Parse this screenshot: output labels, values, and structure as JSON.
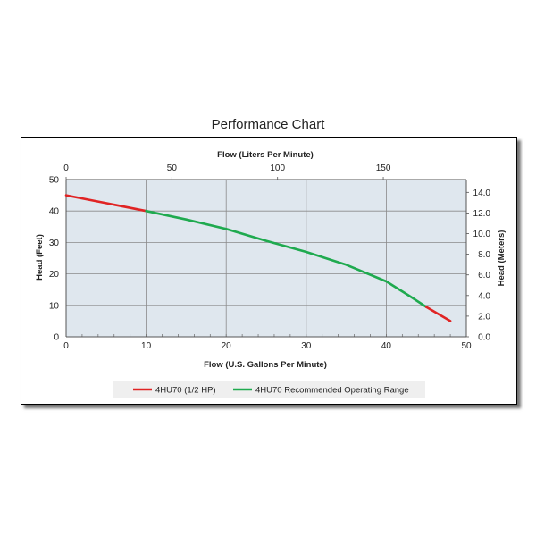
{
  "chart_data": {
    "type": "line",
    "title": "Performance Chart",
    "xlabel": "Flow (U.S. Gallons Per Minute)",
    "x2label": "Flow (Liters Per Minute)",
    "ylabel": "Head (Feet)",
    "y2label": "Head (Meters)",
    "xlim": [
      0,
      50
    ],
    "ylim": [
      0,
      50
    ],
    "x2lim": [
      0,
      189.27
    ],
    "y2lim": [
      0,
      15.24
    ],
    "x_ticks": [
      "0",
      "10",
      "20",
      "30",
      "40",
      "50"
    ],
    "y_ticks": [
      "0",
      "10",
      "20",
      "30",
      "40",
      "50"
    ],
    "x2_ticks": [
      {
        "value": 0,
        "label": "0"
      },
      {
        "value": 50,
        "label": "50"
      },
      {
        "value": 100,
        "label": "100"
      },
      {
        "value": 150,
        "label": "150"
      }
    ],
    "y2_ticks": [
      {
        "value": 0,
        "label": "0.0"
      },
      {
        "value": 2,
        "label": "2.0"
      },
      {
        "value": 4,
        "label": "4.0"
      },
      {
        "value": 6,
        "label": "6.0"
      },
      {
        "value": 8,
        "label": "8.0"
      },
      {
        "value": 10,
        "label": "10.0"
      },
      {
        "value": 12,
        "label": "12.0"
      },
      {
        "value": 14,
        "label": "14.0"
      }
    ],
    "grid": true,
    "legend_position": "bottom",
    "plot_background": "#dfe7ee",
    "series": [
      {
        "name": "4HU70 (1/2 HP)",
        "color": "#e02424",
        "x": [
          0,
          5,
          10
        ],
        "y": [
          45,
          42.5,
          40
        ]
      },
      {
        "name": "4HU70 Recommended Operating Range",
        "color": "#1faa4f",
        "x": [
          10,
          15,
          20,
          25,
          30,
          35,
          40,
          43,
          45
        ],
        "y": [
          40,
          37.3,
          34.3,
          30.5,
          27,
          22.9,
          17.6,
          12.8,
          9.5
        ]
      },
      {
        "name": "",
        "color": "#e02424",
        "x": [
          45,
          48
        ],
        "y": [
          9.5,
          5
        ]
      }
    ]
  }
}
